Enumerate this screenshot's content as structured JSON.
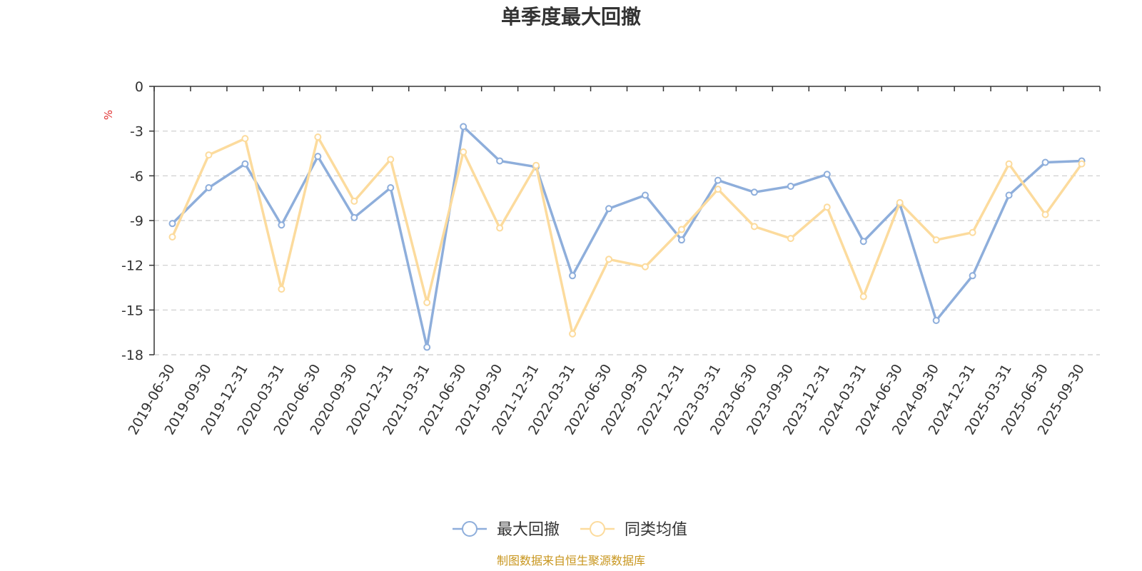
{
  "chart_data": {
    "type": "line",
    "title": "单季度最大回撤",
    "ylabel": "%",
    "ylim": [
      -18,
      0
    ],
    "yticks": [
      0,
      -3,
      -6,
      -9,
      -12,
      -15,
      -18
    ],
    "grid": "horizontal dashed",
    "legend_position": "bottom",
    "x": [
      "2019-06-30",
      "2019-09-30",
      "2019-12-31",
      "2020-03-31",
      "2020-06-30",
      "2020-09-30",
      "2020-12-31",
      "2021-03-31",
      "2021-06-30",
      "2021-09-30",
      "2021-12-31",
      "2022-03-31",
      "2022-06-30",
      "2022-09-30",
      "2022-12-31",
      "2023-03-31",
      "2023-06-30",
      "2023-09-30",
      "2023-12-31",
      "2024-03-31",
      "2024-06-30",
      "2024-09-30",
      "2024-12-31",
      "2025-03-31",
      "2025-06-30",
      "2025-09-30"
    ],
    "series": [
      {
        "name": "最大回撤",
        "color": "#8eaedb",
        "values": [
          -9.2,
          -6.8,
          -5.2,
          -9.3,
          -4.7,
          -8.8,
          -6.8,
          -17.5,
          -2.7,
          -5.0,
          -5.4,
          -12.7,
          -8.2,
          -7.3,
          -10.3,
          -6.3,
          -7.1,
          -6.7,
          -5.9,
          -10.4,
          -7.9,
          -15.7,
          -12.7,
          -7.3,
          -5.1,
          -5.0
        ]
      },
      {
        "name": "同类均值",
        "color": "#fcdb9d",
        "values": [
          -10.1,
          -4.6,
          -3.5,
          -13.6,
          -3.4,
          -7.7,
          -4.9,
          -14.5,
          -4.4,
          -9.5,
          -5.3,
          -16.6,
          -11.6,
          -12.1,
          -9.6,
          -6.9,
          -9.4,
          -10.2,
          -8.1,
          -14.1,
          -7.8,
          -10.3,
          -9.8,
          -5.2,
          -8.6,
          -5.2
        ]
      }
    ]
  },
  "source": "制图数据来自恒生聚源数据库",
  "colors": {
    "axis": "#333333",
    "grid": "#cccccc",
    "unit": "#e03030",
    "source": "#c8961e"
  }
}
